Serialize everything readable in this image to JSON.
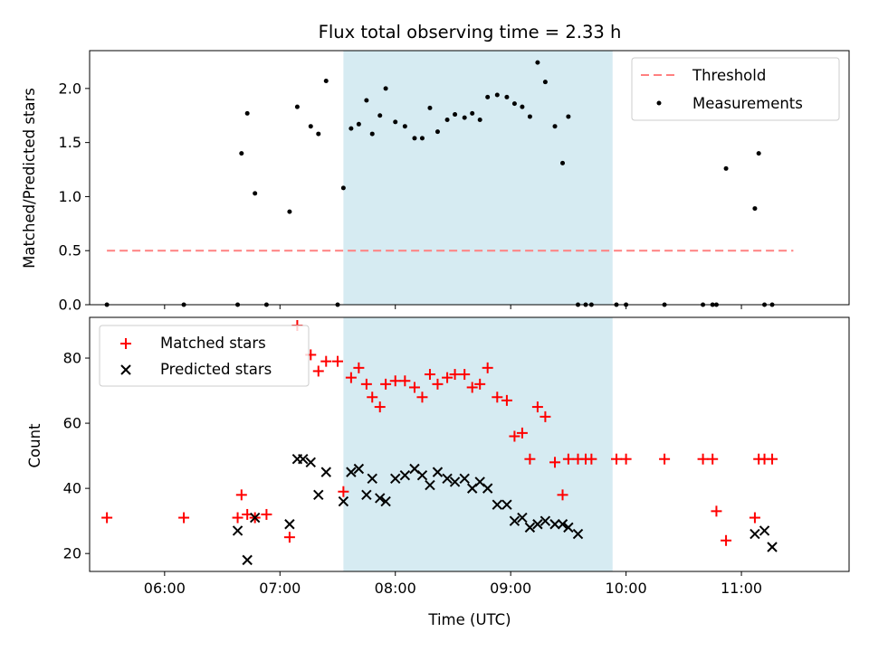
{
  "chart_data": [
    {
      "type": "scatter",
      "title": "Flux total observing time = 2.33 h",
      "xlabel": "",
      "ylabel": "Matched/Predicted stars",
      "xlim": [
        "05:21",
        "11:56"
      ],
      "ylim": [
        0,
        2.35
      ],
      "yticks": [
        "0.0",
        "0.5",
        "1.0",
        "1.5",
        "2.0"
      ],
      "yticks_values": [
        0.0,
        0.5,
        1.0,
        1.5,
        2.0
      ],
      "observing_window": [
        "07:33",
        "09:53"
      ],
      "window_color": "#add8e6",
      "legend_position": "top-right",
      "threshold": {
        "name": "Threshold",
        "value": 0.5,
        "x_range": [
          "05:30",
          "11:27"
        ],
        "color": "#ff8080"
      },
      "series": [
        {
          "name": "Measurements",
          "color": "#000000",
          "marker": "dot",
          "x": [
            "05:30",
            "06:10",
            "06:38",
            "06:40",
            "06:43",
            "06:47",
            "06:53",
            "07:05",
            "07:09",
            "07:16",
            "07:20",
            "07:24",
            "07:30",
            "07:33",
            "07:37",
            "07:41",
            "07:45",
            "07:48",
            "07:52",
            "07:55",
            "08:00",
            "08:05",
            "08:10",
            "08:14",
            "08:18",
            "08:22",
            "08:27",
            "08:31",
            "08:36",
            "08:40",
            "08:44",
            "08:48",
            "08:53",
            "08:58",
            "09:02",
            "09:06",
            "09:10",
            "09:14",
            "09:18",
            "09:23",
            "09:27",
            "09:30",
            "09:35",
            "09:39",
            "09:42",
            "09:55",
            "10:00",
            "10:20",
            "10:40",
            "10:45",
            "10:47",
            "10:52",
            "11:07",
            "11:09",
            "11:12",
            "11:16"
          ],
          "y": [
            0.0,
            0.0,
            0.0,
            1.4,
            1.77,
            1.03,
            0.0,
            0.86,
            1.83,
            1.65,
            1.58,
            2.07,
            0.0,
            1.08,
            1.63,
            1.67,
            1.89,
            1.58,
            1.75,
            2.0,
            1.69,
            1.65,
            1.54,
            1.54,
            1.82,
            1.6,
            1.71,
            1.76,
            1.73,
            1.77,
            1.71,
            1.92,
            1.94,
            1.92,
            1.86,
            1.83,
            1.74,
            2.24,
            2.06,
            1.65,
            1.31,
            1.74,
            0.0,
            0.0,
            0.0,
            0.0,
            0.0,
            0.0,
            0.0,
            0.0,
            0.0,
            1.26,
            0.89,
            1.4,
            0.0,
            0.0
          ]
        }
      ]
    },
    {
      "type": "scatter",
      "title": "",
      "xlabel": "Time (UTC)",
      "ylabel": "Count",
      "xlim": [
        "05:21",
        "11:56"
      ],
      "ylim": [
        14.5,
        92.5
      ],
      "xticks": [
        "06:00",
        "07:00",
        "08:00",
        "09:00",
        "10:00",
        "11:00"
      ],
      "yticks": [
        "20",
        "40",
        "60",
        "80"
      ],
      "yticks_values": [
        20,
        40,
        60,
        80
      ],
      "observing_window": [
        "07:33",
        "09:53"
      ],
      "window_color": "#add8e6",
      "legend_position": "top-left",
      "series": [
        {
          "name": "Matched stars",
          "color": "#ff0000",
          "marker": "plus",
          "x": [
            "05:30",
            "06:10",
            "06:38",
            "06:40",
            "06:43",
            "06:47",
            "06:53",
            "07:05",
            "07:09",
            "07:16",
            "07:20",
            "07:24",
            "07:30",
            "07:33",
            "07:37",
            "07:41",
            "07:45",
            "07:48",
            "07:52",
            "07:55",
            "08:00",
            "08:05",
            "08:10",
            "08:14",
            "08:18",
            "08:22",
            "08:27",
            "08:31",
            "08:36",
            "08:40",
            "08:44",
            "08:48",
            "08:53",
            "08:58",
            "09:02",
            "09:06",
            "09:10",
            "09:14",
            "09:18",
            "09:23",
            "09:27",
            "09:30",
            "09:35",
            "09:39",
            "09:42",
            "09:55",
            "10:00",
            "10:20",
            "10:40",
            "10:45",
            "10:47",
            "10:52",
            "11:07",
            "11:09",
            "11:12",
            "11:16"
          ],
          "y": [
            31,
            31,
            31,
            38,
            32,
            31,
            32,
            25,
            90,
            81,
            76,
            79,
            79,
            39,
            74,
            77,
            72,
            68,
            65,
            72,
            73,
            73,
            71,
            68,
            75,
            72,
            74,
            75,
            75,
            71,
            72,
            77,
            68,
            67,
            56,
            57,
            49,
            65,
            62,
            48,
            38,
            49,
            49,
            49,
            49,
            49,
            49,
            49,
            49,
            49,
            33,
            24,
            31,
            49,
            49,
            49
          ]
        },
        {
          "name": "Predicted stars",
          "color": "#000000",
          "marker": "x",
          "x": [
            "06:38",
            "06:43",
            "06:47",
            "07:05",
            "07:09",
            "07:12",
            "07:16",
            "07:20",
            "07:24",
            "07:33",
            "07:37",
            "07:41",
            "07:45",
            "07:48",
            "07:52",
            "07:55",
            "08:00",
            "08:05",
            "08:10",
            "08:14",
            "08:18",
            "08:22",
            "08:27",
            "08:31",
            "08:36",
            "08:40",
            "08:44",
            "08:48",
            "08:53",
            "08:58",
            "09:02",
            "09:06",
            "09:10",
            "09:14",
            "09:18",
            "09:23",
            "09:27",
            "09:30",
            "09:35",
            "11:07",
            "11:12",
            "11:16"
          ],
          "y": [
            27,
            18,
            31,
            29,
            49,
            49,
            48,
            38,
            45,
            36,
            45,
            46,
            38,
            43,
            37,
            36,
            43,
            44,
            46,
            44,
            41,
            45,
            43,
            42,
            43,
            40,
            42,
            40,
            35,
            35,
            30,
            31,
            28,
            29,
            30,
            29,
            29,
            28,
            26,
            26,
            27,
            22
          ]
        }
      ]
    }
  ]
}
